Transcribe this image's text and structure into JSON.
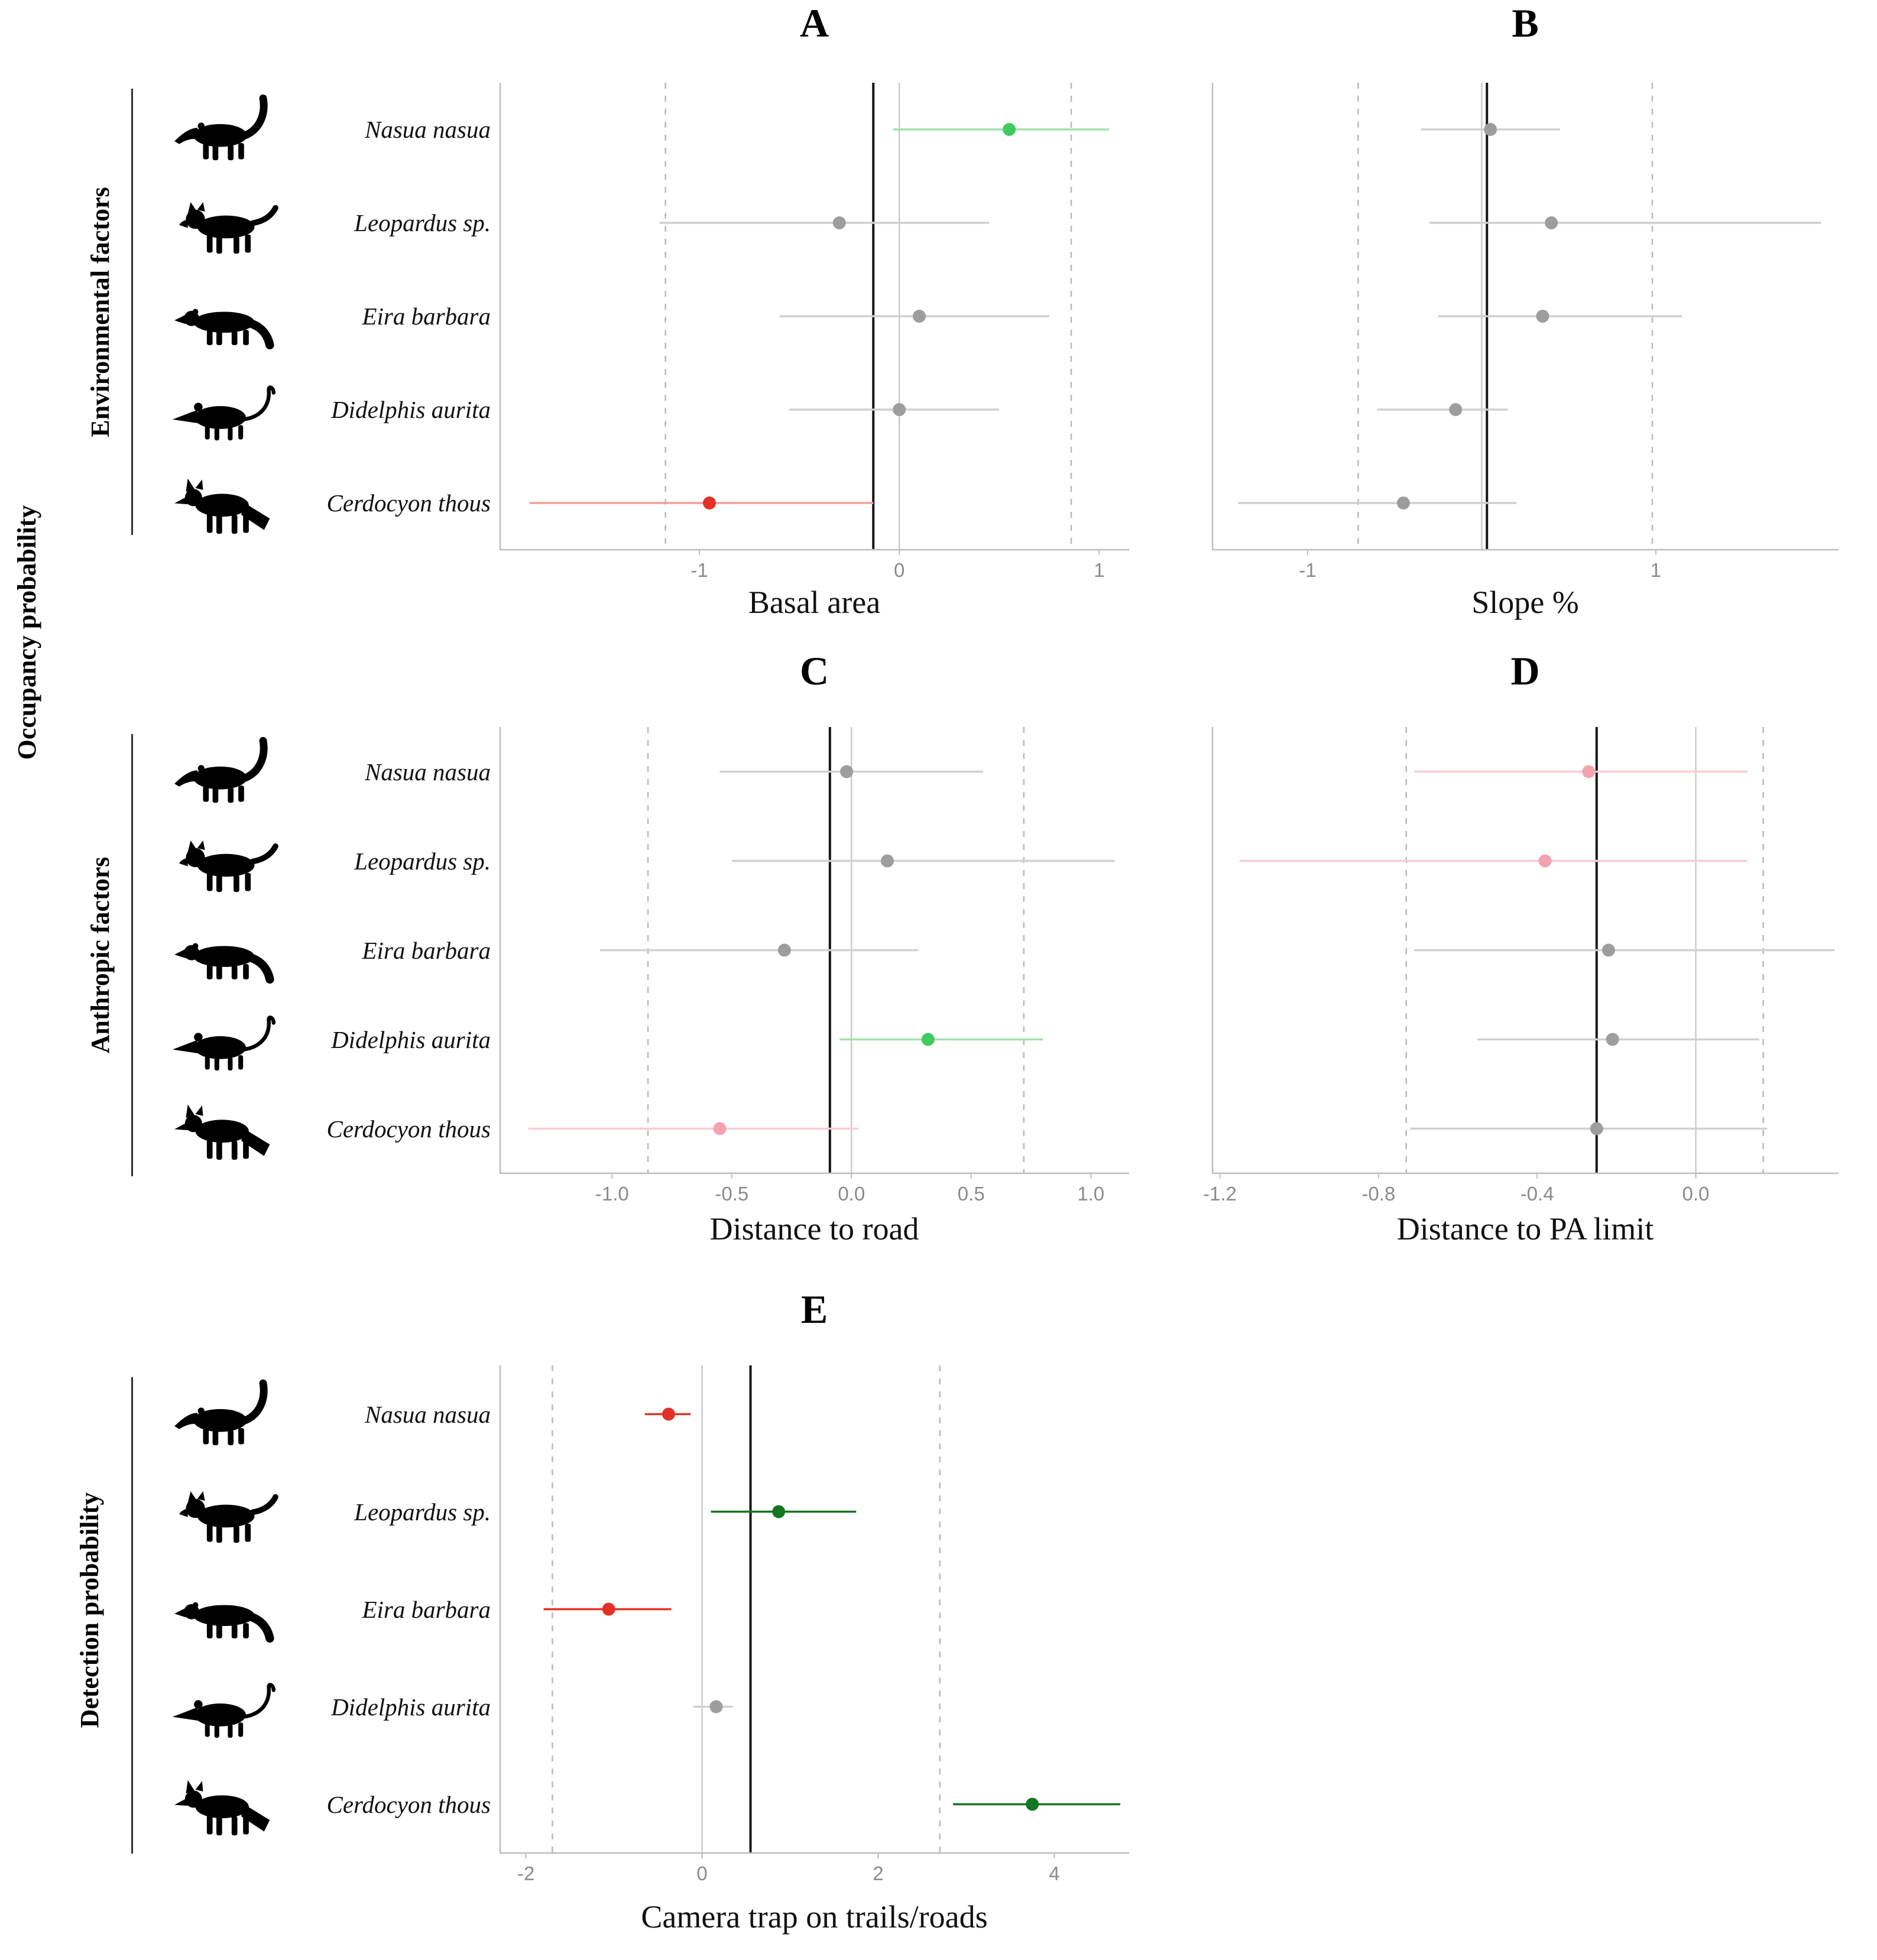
{
  "side_labels": {
    "occupancy": "Occupancy probability",
    "environmental": "Environmental factors",
    "anthropic": "Anthropic  factors",
    "detection": "Detection probability"
  },
  "species_names": [
    "Nasua nasua",
    "Leopardus sp.",
    "Eira barbara",
    "Didelphis aurita",
    "Cerdocyon thous"
  ],
  "palette": {
    "green": "#3fca5e",
    "light_green": "#9fe3ae",
    "dark_green": "#14771f",
    "red": "#e23227",
    "light_red": "#f0a096",
    "pink": "#f3a3b0",
    "light_pink": "#f8ccd4",
    "gray": "#9d9d9d",
    "light_gray": "#d0d0d0"
  },
  "chart_data": [
    {
      "id": "A",
      "letter": "A",
      "type": "scatter",
      "variant": "forest-plot",
      "xlabel": "Basal area",
      "xlim": [
        -2.0,
        1.15
      ],
      "ticks": [
        {
          "v": -1,
          "label": "-1"
        },
        {
          "v": 0,
          "label": "0"
        },
        {
          "v": 1,
          "label": "1"
        }
      ],
      "ref": {
        "solid": -0.13,
        "zero": 0,
        "dashed": [
          -1.17,
          0.86
        ]
      },
      "rows": [
        {
          "species": "Nasua nasua",
          "icon": "coati",
          "est": 0.55,
          "lo": -0.03,
          "hi": 1.05,
          "point_color": "green",
          "line_color": "light_green"
        },
        {
          "species": "Leopardus sp.",
          "icon": "ocelot",
          "est": -0.3,
          "lo": -1.2,
          "hi": 0.45,
          "point_color": "gray",
          "line_color": "light_gray"
        },
        {
          "species": "Eira barbara",
          "icon": "tayra",
          "est": 0.1,
          "lo": -0.6,
          "hi": 0.75,
          "point_color": "gray",
          "line_color": "light_gray"
        },
        {
          "species": "Didelphis aurita",
          "icon": "opossum",
          "est": 0.0,
          "lo": -0.55,
          "hi": 0.5,
          "point_color": "gray",
          "line_color": "light_gray"
        },
        {
          "species": "Cerdocyon thous",
          "icon": "fox",
          "est": -0.95,
          "lo": -1.85,
          "hi": -0.13,
          "point_color": "red",
          "line_color": "light_red"
        }
      ]
    },
    {
      "id": "B",
      "letter": "B",
      "type": "scatter",
      "variant": "forest-plot",
      "xlabel": "Slope %",
      "xlim": [
        -1.55,
        2.05
      ],
      "ticks": [
        {
          "v": -1,
          "label": "-1"
        },
        {
          "v": 1,
          "label": "1"
        }
      ],
      "ref": {
        "solid": 0.03,
        "zero": 0,
        "dashed": [
          -0.71,
          0.98
        ]
      },
      "rows": [
        {
          "species": "Nasua nasua",
          "icon": "coati",
          "est": 0.05,
          "lo": -0.35,
          "hi": 0.45,
          "point_color": "gray",
          "line_color": "light_gray"
        },
        {
          "species": "Leopardus sp.",
          "icon": "ocelot",
          "est": 0.4,
          "lo": -0.3,
          "hi": 1.95,
          "point_color": "gray",
          "line_color": "light_gray"
        },
        {
          "species": "Eira barbara",
          "icon": "tayra",
          "est": 0.35,
          "lo": -0.25,
          "hi": 1.15,
          "point_color": "gray",
          "line_color": "light_gray"
        },
        {
          "species": "Didelphis aurita",
          "icon": "opossum",
          "est": -0.15,
          "lo": -0.6,
          "hi": 0.15,
          "point_color": "gray",
          "line_color": "light_gray"
        },
        {
          "species": "Cerdocyon thous",
          "icon": "fox",
          "est": -0.45,
          "lo": -1.4,
          "hi": 0.2,
          "point_color": "gray",
          "line_color": "light_gray"
        }
      ]
    },
    {
      "id": "C",
      "letter": "C",
      "type": "scatter",
      "variant": "forest-plot",
      "xlabel": "Distance to road",
      "xlim": [
        -1.47,
        1.16
      ],
      "ticks": [
        {
          "v": -1.0,
          "label": "-1.0"
        },
        {
          "v": -0.5,
          "label": "-0.5"
        },
        {
          "v": 0.0,
          "label": "0.0"
        },
        {
          "v": 0.5,
          "label": "0.5"
        },
        {
          "v": 1.0,
          "label": "1.0"
        }
      ],
      "ref": {
        "solid": -0.09,
        "zero": 0,
        "dashed": [
          -0.85,
          0.72
        ]
      },
      "rows": [
        {
          "species": "Nasua nasua",
          "icon": "coati",
          "est": -0.02,
          "lo": -0.55,
          "hi": 0.55,
          "point_color": "gray",
          "line_color": "light_gray"
        },
        {
          "species": "Leopardus sp.",
          "icon": "ocelot",
          "est": 0.15,
          "lo": -0.5,
          "hi": 1.1,
          "point_color": "gray",
          "line_color": "light_gray"
        },
        {
          "species": "Eira barbara",
          "icon": "tayra",
          "est": -0.28,
          "lo": -1.05,
          "hi": 0.28,
          "point_color": "gray",
          "line_color": "light_gray"
        },
        {
          "species": "Didelphis aurita",
          "icon": "opossum",
          "est": 0.32,
          "lo": -0.05,
          "hi": 0.8,
          "point_color": "green",
          "line_color": "light_green"
        },
        {
          "species": "Cerdocyon thous",
          "icon": "fox",
          "est": -0.55,
          "lo": -1.35,
          "hi": 0.03,
          "point_color": "pink",
          "line_color": "light_pink"
        }
      ]
    },
    {
      "id": "D",
      "letter": "D",
      "type": "scatter",
      "variant": "forest-plot",
      "xlabel": "Distance to PA limit",
      "xlim": [
        -1.22,
        0.36
      ],
      "ticks": [
        {
          "v": -1.2,
          "label": "-1.2"
        },
        {
          "v": -0.8,
          "label": "-0.8"
        },
        {
          "v": -0.4,
          "label": "-0.4"
        },
        {
          "v": 0.0,
          "label": "0.0"
        }
      ],
      "ref": {
        "solid": -0.25,
        "zero": 0,
        "dashed": [
          -0.73,
          0.17
        ]
      },
      "rows": [
        {
          "species": "Nasua nasua",
          "icon": "coati",
          "est": -0.27,
          "lo": -0.71,
          "hi": 0.13,
          "point_color": "pink",
          "line_color": "light_pink"
        },
        {
          "species": "Leopardus sp.",
          "icon": "ocelot",
          "est": -0.38,
          "lo": -1.15,
          "hi": 0.13,
          "point_color": "pink",
          "line_color": "light_pink"
        },
        {
          "species": "Eira barbara",
          "icon": "tayra",
          "est": -0.22,
          "lo": -0.71,
          "hi": 0.35,
          "point_color": "gray",
          "line_color": "light_gray"
        },
        {
          "species": "Didelphis aurita",
          "icon": "opossum",
          "est": -0.21,
          "lo": -0.55,
          "hi": 0.16,
          "point_color": "gray",
          "line_color": "light_gray"
        },
        {
          "species": "Cerdocyon thous",
          "icon": "fox",
          "est": -0.25,
          "lo": -0.72,
          "hi": 0.18,
          "point_color": "gray",
          "line_color": "light_gray"
        }
      ]
    },
    {
      "id": "E",
      "letter": "E",
      "type": "scatter",
      "variant": "forest-plot",
      "xlabel": "Camera trap on trails/roads",
      "xlim": [
        -2.3,
        4.85
      ],
      "ticks": [
        {
          "v": -2,
          "label": "-2"
        },
        {
          "v": 0,
          "label": "0"
        },
        {
          "v": 2,
          "label": "2"
        },
        {
          "v": 4,
          "label": "4"
        }
      ],
      "ref": {
        "solid": 0.55,
        "zero": 0,
        "dashed": [
          -1.7,
          2.7
        ]
      },
      "rows": [
        {
          "species": "Nasua nasua",
          "icon": "coati",
          "est": -0.38,
          "lo": -0.65,
          "hi": -0.13,
          "point_color": "red",
          "line_color": "red"
        },
        {
          "species": "Leopardus sp.",
          "icon": "ocelot",
          "est": 0.87,
          "lo": 0.1,
          "hi": 1.75,
          "point_color": "dark_green",
          "line_color": "dark_green"
        },
        {
          "species": "Eira barbara",
          "icon": "tayra",
          "est": -1.06,
          "lo": -1.8,
          "hi": -0.35,
          "point_color": "red",
          "line_color": "red"
        },
        {
          "species": "Didelphis aurita",
          "icon": "opossum",
          "est": 0.16,
          "lo": -0.1,
          "hi": 0.35,
          "point_color": "gray",
          "line_color": "light_gray"
        },
        {
          "species": "Cerdocyon thous",
          "icon": "fox",
          "est": 3.75,
          "lo": 2.85,
          "hi": 4.75,
          "point_color": "dark_green",
          "line_color": "dark_green"
        }
      ]
    }
  ]
}
